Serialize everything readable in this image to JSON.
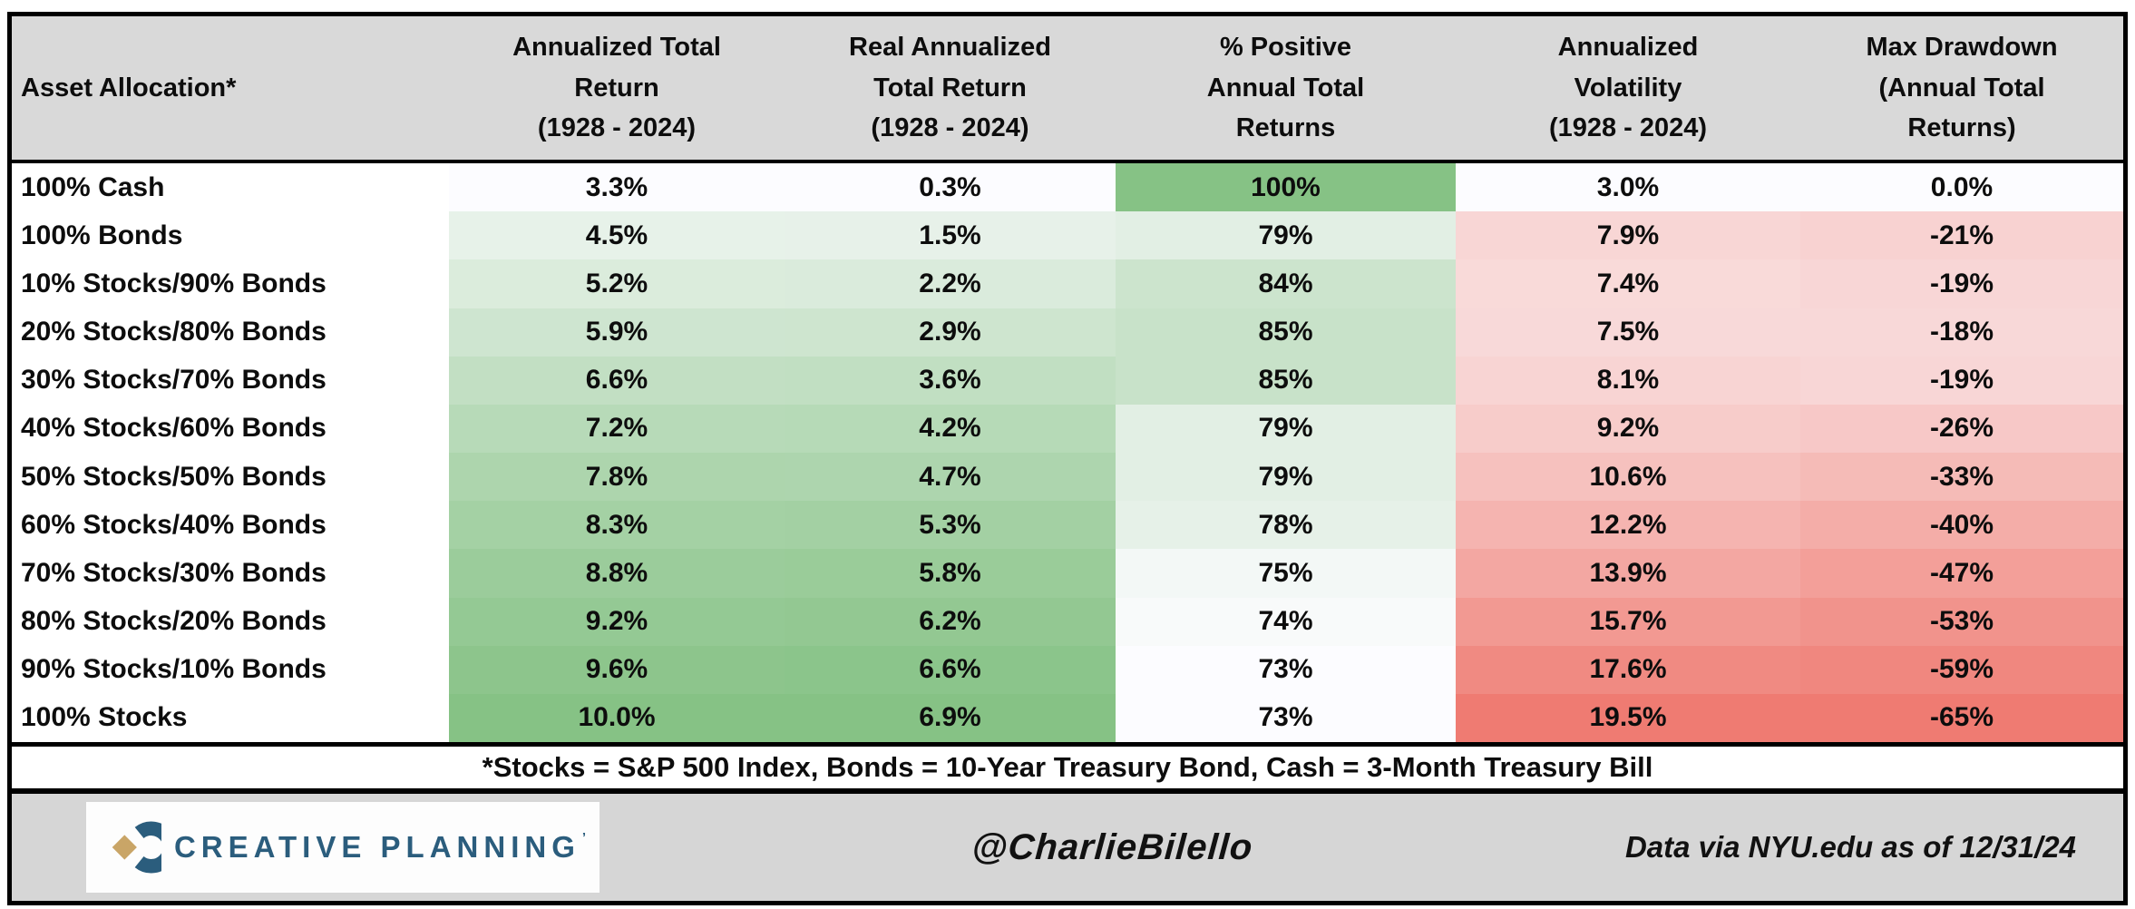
{
  "chart_data": {
    "type": "table",
    "title": "Asset Allocation historical performance table (1928 - 2024)",
    "columns": [
      {
        "id": "asset_allocation",
        "header_lines": [
          "Asset Allocation*"
        ],
        "align": "left"
      },
      {
        "id": "annualized_total_return",
        "header_lines": [
          "Annualized Total",
          "Return",
          "(1928 - 2024)"
        ],
        "scale": {
          "ramp": "green",
          "min": 3.3,
          "max": 10.0
        }
      },
      {
        "id": "real_annualized_total_return",
        "header_lines": [
          "Real Annualized",
          "Total Return",
          "(1928 - 2024)"
        ],
        "scale": {
          "ramp": "green",
          "min": 0.3,
          "max": 6.9
        }
      },
      {
        "id": "pct_positive_annual_total_returns",
        "header_lines": [
          "% Positive",
          "Annual Total",
          "Returns"
        ],
        "scale": {
          "ramp": "green",
          "min": 73,
          "max": 100
        }
      },
      {
        "id": "annualized_volatility",
        "header_lines": [
          "Annualized",
          "Volatility",
          "(1928 - 2024)"
        ],
        "scale": {
          "ramp": "red",
          "min": 3.0,
          "max": 19.5
        }
      },
      {
        "id": "max_drawdown",
        "header_lines": [
          "Max Drawdown",
          "(Annual Total",
          "Returns)"
        ],
        "scale": {
          "ramp": "red_inverted",
          "min": -65,
          "max": 0
        }
      }
    ],
    "rows": [
      {
        "asset": "100% Cash",
        "values": [
          3.3,
          0.3,
          100,
          3.0,
          0.0
        ],
        "display": [
          "3.3%",
          "0.3%",
          "100%",
          "3.0%",
          "0.0%"
        ]
      },
      {
        "asset": "100% Bonds",
        "values": [
          4.5,
          1.5,
          79,
          7.9,
          -21
        ],
        "display": [
          "4.5%",
          "1.5%",
          "79%",
          "7.9%",
          "-21%"
        ]
      },
      {
        "asset": "10% Stocks/90% Bonds",
        "values": [
          5.2,
          2.2,
          84,
          7.4,
          -19
        ],
        "display": [
          "5.2%",
          "2.2%",
          "84%",
          "7.4%",
          "-19%"
        ]
      },
      {
        "asset": "20% Stocks/80% Bonds",
        "values": [
          5.9,
          2.9,
          85,
          7.5,
          -18
        ],
        "display": [
          "5.9%",
          "2.9%",
          "85%",
          "7.5%",
          "-18%"
        ]
      },
      {
        "asset": "30% Stocks/70% Bonds",
        "values": [
          6.6,
          3.6,
          85,
          8.1,
          -19
        ],
        "display": [
          "6.6%",
          "3.6%",
          "85%",
          "8.1%",
          "-19%"
        ]
      },
      {
        "asset": "40% Stocks/60% Bonds",
        "values": [
          7.2,
          4.2,
          79,
          9.2,
          -26
        ],
        "display": [
          "7.2%",
          "4.2%",
          "79%",
          "9.2%",
          "-26%"
        ]
      },
      {
        "asset": "50% Stocks/50% Bonds",
        "values": [
          7.8,
          4.7,
          79,
          10.6,
          -33
        ],
        "display": [
          "7.8%",
          "4.7%",
          "79%",
          "10.6%",
          "-33%"
        ]
      },
      {
        "asset": "60% Stocks/40% Bonds",
        "values": [
          8.3,
          5.3,
          78,
          12.2,
          -40
        ],
        "display": [
          "8.3%",
          "5.3%",
          "78%",
          "12.2%",
          "-40%"
        ]
      },
      {
        "asset": "70% Stocks/30% Bonds",
        "values": [
          8.8,
          5.8,
          75,
          13.9,
          -47
        ],
        "display": [
          "8.8%",
          "5.8%",
          "75%",
          "13.9%",
          "-47%"
        ]
      },
      {
        "asset": "80% Stocks/20% Bonds",
        "values": [
          9.2,
          6.2,
          74,
          15.7,
          -53
        ],
        "display": [
          "9.2%",
          "6.2%",
          "74%",
          "15.7%",
          "-53%"
        ]
      },
      {
        "asset": "90% Stocks/10% Bonds",
        "values": [
          9.6,
          6.6,
          73,
          17.6,
          -59
        ],
        "display": [
          "9.6%",
          "6.6%",
          "73%",
          "17.6%",
          "-59%"
        ]
      },
      {
        "asset": "100% Stocks",
        "values": [
          10.0,
          6.9,
          73,
          19.5,
          -65
        ],
        "display": [
          "10.0%",
          "6.9%",
          "73%",
          "19.5%",
          "-65%"
        ]
      }
    ],
    "layout": {
      "gridlines": false,
      "heatmap_ramps": "per-column white-to-green / white-to-red"
    }
  },
  "footnote": {
    "text": "*Stocks = S&P 500 Index, Bonds = 10-Year Treasury Bond, Cash = 3-Month Treasury Bill"
  },
  "footer": {
    "logo_text": "CREATIVE PLANNING",
    "logo_trademark": "’",
    "handle": "@CharlieBilello",
    "source": "Data via NYU.edu as of 12/31/24"
  },
  "colors": {
    "header_bg": "#d9d9d9",
    "band_bg": "#d6d6d6",
    "neutral_cell": "#fcfcff",
    "green_max": "#86c285",
    "red_max": "#ef7b72",
    "border": "#000000",
    "logo_navy": "#2b5d7d",
    "logo_gold": "#c9a567"
  }
}
